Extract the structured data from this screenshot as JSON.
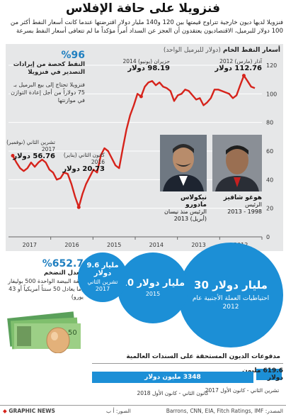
{
  "header": {
    "title": "فنزويلا على حافة الإفلاس",
    "subtitle": "فنزويلا لديها ديون خارجية تتراوح قيمتها بين 120 و140 مليار دولار اقترضتها عندما كانت أسعار النفط أكثر من 100 دولار للبرميل، الاقتصاديون يعتقدون أن العجز عن السداد أمراً مؤكداً ما لم تتعافى أسعار النفط بسرعة"
  },
  "chart_panel": {
    "title": "أسعار النفط الخام",
    "title_unit": "(دولار للبرميل الواحد)"
  },
  "chart_data": {
    "type": "line",
    "title": "أسعار النفط الخام",
    "ylabel": "(دولار للبرميل الواحد)",
    "y_ticks": [
      0,
      20,
      40,
      60,
      80,
      100,
      120
    ],
    "x_ticks": [
      "2012",
      "2013",
      "2014",
      "2015",
      "2016",
      "2017"
    ],
    "ylim": [
      0,
      120
    ],
    "series": [
      {
        "values": [
          104,
          105,
          109,
          112.76,
          106,
          99,
          97,
          100,
          101,
          102,
          103,
          103,
          97,
          94,
          92,
          97,
          96,
          99,
          102,
          103,
          100,
          99,
          95,
          102,
          104,
          105,
          108,
          106,
          109,
          108,
          105,
          98.19,
          100,
          92,
          85,
          75,
          62,
          48,
          50,
          55,
          60,
          62,
          57,
          45,
          47,
          42,
          37,
          30,
          20.73,
          28,
          37,
          44,
          45,
          41,
          40,
          45,
          47,
          52,
          54,
          52,
          49,
          52,
          48,
          46,
          48,
          52,
          56.76
        ]
      }
    ],
    "annotations": [
      {
        "label": "آذار (مارس) 2012",
        "value": "112.76 دولار"
      },
      {
        "label": "حزيران (يونيو) 2014",
        "value": "98.19 دولار"
      },
      {
        "label": "كانون الثاني (يناير) 2016",
        "value": "20.73 دولار"
      },
      {
        "label": "تشرين الثاني (نوفمبر) 2017",
        "value": "56.76 دولار"
      }
    ]
  },
  "stats_left": {
    "oil_pct": "%96",
    "oil_title": "النفط كحصة من إيرادات التصدير في فنزويلا",
    "oil_note": "فنزويلا تحتاج إلى بيع البرميل بـ 75 دولاراً من أجل إعادة التوازن في موازنتها",
    "inflation_pct": "%652.7",
    "inflation_title": "معدل التضخم",
    "inflation_note": "كلفة البيضة الواحدة 500 بوليفار (ما يعادل 50 سنتاً أمريكياً أو 43 يورو)"
  },
  "portraits": [
    {
      "name": "هوغو شافيز",
      "role": "الرئيس",
      "years": "1998 - 2013"
    },
    {
      "name": "نيكولاس مادورو",
      "role": "الرئيس منذ نيسان",
      "years": "(أبريل) 2013"
    }
  ],
  "bubbles": [
    {
      "value": "30 مليار دولار",
      "label": "احتياطيات العملة الأجنبية عام 2012"
    },
    {
      "value": "20 مليار دولار",
      "label": "2015"
    },
    {
      "value": "9.6 مليار دولار",
      "label": "تشرين الثاني 2017"
    }
  ],
  "debt": {
    "title": "مدفوعات الديون المستحقة على السندات العالمية",
    "bars": [
      {
        "value": "619.6 مليون دولار",
        "period": "تشرين الثاني - كانون الأول 2017"
      },
      {
        "value": "3348 مليون دولار",
        "period": "كانون الثاني - كانون الأول 2018"
      }
    ]
  },
  "footer": {
    "brand": "GRAPHIC NEWS",
    "sources": "المصدر: Barrons, CNN, EIA, Fitch Ratings, IMF",
    "photos": "الصور: أ ب"
  },
  "colors": {
    "accent_blue": "#1c8fd6",
    "line_red": "#d6231b",
    "chart_bg": "#e6e7e8"
  }
}
